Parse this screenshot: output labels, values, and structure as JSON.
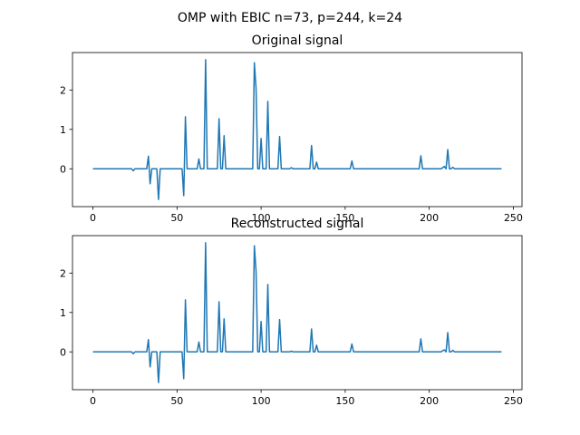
{
  "figure": {
    "suptitle": "OMP with EBIC n=73, p=244, k=24",
    "line_color": "#1f77b4"
  },
  "chart_data": [
    {
      "type": "line",
      "title": "Original signal",
      "xlabel": "",
      "ylabel": "",
      "xlim": [
        -12.15,
        255.15
      ],
      "ylim": [
        -0.96,
        2.95
      ],
      "xticks": [
        0,
        50,
        100,
        150,
        200,
        250
      ],
      "yticks": [
        0,
        1,
        2
      ],
      "grid": false,
      "legend": "none",
      "spikes": [
        {
          "x": 24,
          "y": -0.05
        },
        {
          "x": 33,
          "y": 0.32
        },
        {
          "x": 34,
          "y": -0.38
        },
        {
          "x": 39,
          "y": -0.78
        },
        {
          "x": 54,
          "y": -0.68
        },
        {
          "x": 55,
          "y": 1.32
        },
        {
          "x": 63,
          "y": 0.25
        },
        {
          "x": 67,
          "y": 2.77
        },
        {
          "x": 75,
          "y": 1.27
        },
        {
          "x": 78,
          "y": 0.84
        },
        {
          "x": 96,
          "y": 2.69
        },
        {
          "x": 97,
          "y": 2.05
        },
        {
          "x": 100,
          "y": 0.77
        },
        {
          "x": 104,
          "y": 1.71
        },
        {
          "x": 111,
          "y": 0.82
        },
        {
          "x": 118,
          "y": 0.03
        },
        {
          "x": 130,
          "y": 0.59
        },
        {
          "x": 133,
          "y": 0.17
        },
        {
          "x": 154,
          "y": 0.2
        },
        {
          "x": 195,
          "y": 0.33
        },
        {
          "x": 208,
          "y": 0.03
        },
        {
          "x": 209,
          "y": 0.06
        },
        {
          "x": 211,
          "y": 0.49
        },
        {
          "x": 214,
          "y": 0.04
        }
      ]
    },
    {
      "type": "line",
      "title": "Reconstructed signal",
      "xlabel": "",
      "ylabel": "",
      "xlim": [
        -12.15,
        255.15
      ],
      "ylim": [
        -0.96,
        2.95
      ],
      "xticks": [
        0,
        50,
        100,
        150,
        200,
        250
      ],
      "yticks": [
        0,
        1,
        2
      ],
      "grid": false,
      "legend": "none",
      "spikes": [
        {
          "x": 24,
          "y": -0.05
        },
        {
          "x": 33,
          "y": 0.31
        },
        {
          "x": 34,
          "y": -0.38
        },
        {
          "x": 39,
          "y": -0.78
        },
        {
          "x": 54,
          "y": -0.68
        },
        {
          "x": 55,
          "y": 1.32
        },
        {
          "x": 63,
          "y": 0.25
        },
        {
          "x": 67,
          "y": 2.77
        },
        {
          "x": 75,
          "y": 1.27
        },
        {
          "x": 78,
          "y": 0.84
        },
        {
          "x": 96,
          "y": 2.69
        },
        {
          "x": 97,
          "y": 2.05
        },
        {
          "x": 100,
          "y": 0.77
        },
        {
          "x": 104,
          "y": 1.71
        },
        {
          "x": 111,
          "y": 0.82
        },
        {
          "x": 118,
          "y": 0.02
        },
        {
          "x": 130,
          "y": 0.58
        },
        {
          "x": 133,
          "y": 0.17
        },
        {
          "x": 154,
          "y": 0.2
        },
        {
          "x": 195,
          "y": 0.33
        },
        {
          "x": 208,
          "y": 0.03
        },
        {
          "x": 209,
          "y": 0.05
        },
        {
          "x": 211,
          "y": 0.49
        },
        {
          "x": 214,
          "y": 0.04
        }
      ]
    }
  ]
}
